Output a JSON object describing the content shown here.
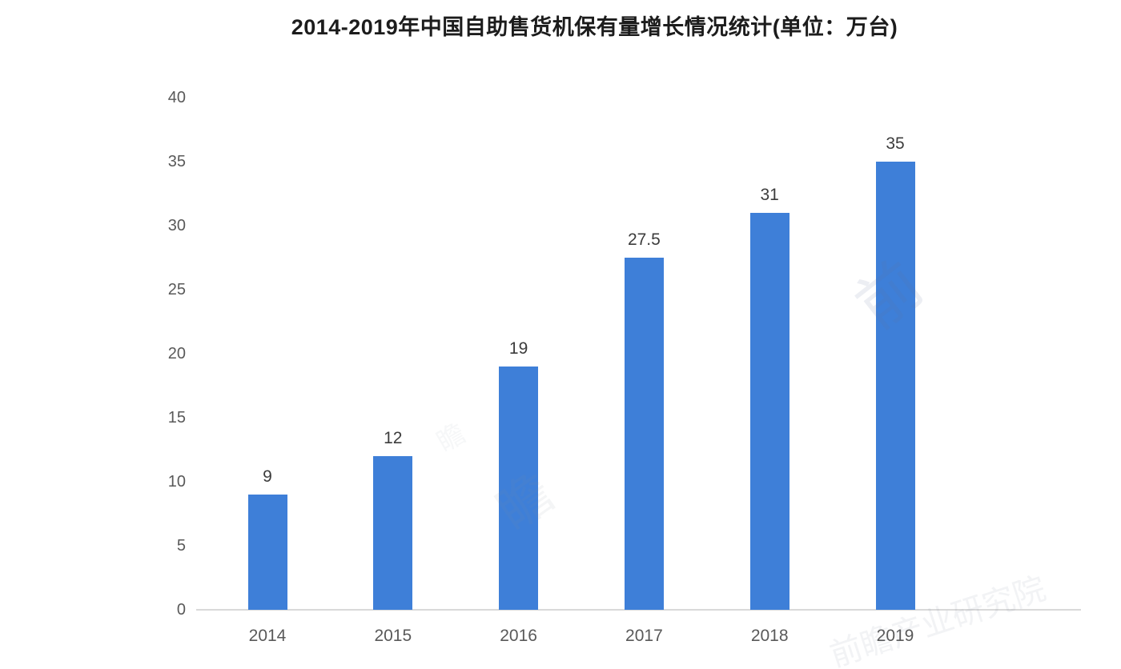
{
  "chart_data": {
    "type": "bar",
    "title": "2014-2019年中国自助售货机保有量增长情况统计(单位：万台)",
    "categories": [
      "2014",
      "2015",
      "2016",
      "2017",
      "2018",
      "2019"
    ],
    "values": [
      9,
      12,
      19,
      27.5,
      31,
      35
    ],
    "value_labels": [
      "9",
      "12",
      "19",
      "27.5",
      "31",
      "35"
    ],
    "yticks": [
      0,
      5,
      10,
      15,
      20,
      25,
      30,
      35,
      40
    ],
    "ylim": [
      0,
      40
    ],
    "xlabel": "",
    "ylabel": "",
    "grid": false,
    "legend": null,
    "bar_color": "#3e7fd8",
    "title_color": "#1c1c1c",
    "axis_text_color": "#595959",
    "value_label_color": "#3c3c3c",
    "baseline_color": "#d9d9d9"
  },
  "watermarks": [
    {
      "text": "前"
    },
    {
      "text": "瞻"
    },
    {
      "text": "前瞻产业研究院"
    }
  ]
}
